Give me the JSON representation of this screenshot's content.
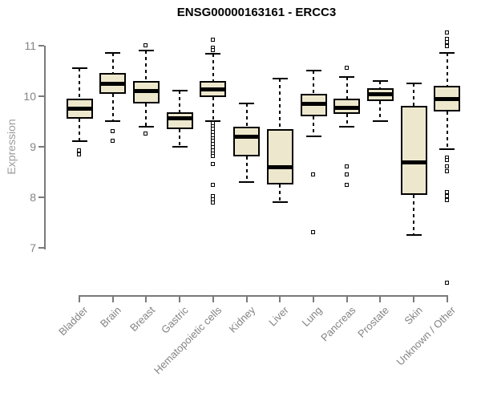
{
  "chart_data": {
    "type": "boxplot",
    "title": "ENSG00000163161 - ERCC3",
    "ylabel": "Expression",
    "xlabel": "",
    "yticks": [
      7,
      8,
      9,
      10,
      11
    ],
    "ylim": [
      7,
      11
    ],
    "grid": false,
    "legend": "none",
    "colors": {
      "box_fill": "#EDE8CD",
      "box_stroke": "#000000",
      "axis_line": "#7a7a7a",
      "tick_label": "#848484",
      "axis_title": "#9c9c9c",
      "title": "#000000"
    },
    "categories": [
      "Bladder",
      "Brain",
      "Breast",
      "Gastric",
      "Hematopoietic cells",
      "Kidney",
      "Liver",
      "Lung",
      "Pancreas",
      "Prostate",
      "Skin",
      "Unknown / Other"
    ],
    "boxes": [
      {
        "category": "Bladder",
        "whisker_low": 9.1,
        "q1": 9.55,
        "median": 9.75,
        "q3": 9.95,
        "whisker_high": 10.55,
        "outliers": [
          8.91,
          8.84
        ]
      },
      {
        "category": "Brain",
        "whisker_low": 9.5,
        "q1": 10.05,
        "median": 10.25,
        "q3": 10.45,
        "whisker_high": 10.85,
        "outliers": [
          9.3,
          9.1
        ]
      },
      {
        "category": "Breast",
        "whisker_low": 9.4,
        "q1": 9.85,
        "median": 10.1,
        "q3": 10.3,
        "whisker_high": 10.9,
        "outliers": [
          11.0,
          9.25
        ]
      },
      {
        "category": "Gastric",
        "whisker_low": 9.0,
        "q1": 9.35,
        "median": 9.57,
        "q3": 9.68,
        "whisker_high": 10.1,
        "outliers": []
      },
      {
        "category": "Hematopoietic cells",
        "whisker_low": 9.5,
        "q1": 9.98,
        "median": 10.13,
        "q3": 10.3,
        "whisker_high": 10.83,
        "outliers": [
          11.1,
          10.95,
          10.9,
          9.45,
          9.4,
          9.34,
          9.28,
          9.22,
          9.16,
          9.1,
          9.04,
          8.98,
          8.92,
          8.86,
          8.8,
          8.65,
          8.23,
          8.02,
          7.95,
          7.88
        ]
      },
      {
        "category": "Kidney",
        "whisker_low": 8.3,
        "q1": 8.8,
        "median": 9.2,
        "q3": 9.4,
        "whisker_high": 9.85,
        "outliers": []
      },
      {
        "category": "Liver",
        "whisker_low": 7.9,
        "q1": 8.25,
        "median": 8.6,
        "q3": 9.35,
        "whisker_high": 10.35,
        "outliers": []
      },
      {
        "category": "Lung",
        "whisker_low": 9.2,
        "q1": 9.6,
        "median": 9.85,
        "q3": 10.05,
        "whisker_high": 10.5,
        "outliers": [
          8.45,
          7.3
        ]
      },
      {
        "category": "Pancreas",
        "whisker_low": 9.4,
        "q1": 9.65,
        "median": 9.77,
        "q3": 9.95,
        "whisker_high": 10.37,
        "outliers": [
          10.55,
          8.6,
          8.45,
          8.24
        ]
      },
      {
        "category": "Prostate",
        "whisker_low": 9.5,
        "q1": 9.9,
        "median": 10.05,
        "q3": 10.15,
        "whisker_high": 10.3,
        "outliers": []
      },
      {
        "category": "Skin",
        "whisker_low": 7.25,
        "q1": 8.05,
        "median": 8.7,
        "q3": 9.8,
        "whisker_high": 10.25,
        "outliers": []
      },
      {
        "category": "Unknown / Other",
        "whisker_low": 8.95,
        "q1": 9.7,
        "median": 9.95,
        "q3": 10.2,
        "whisker_high": 10.85,
        "outliers": [
          11.25,
          11.12,
          11.06,
          10.98,
          8.78,
          8.72,
          8.6,
          8.5,
          8.1,
          8.02,
          7.93,
          6.3
        ]
      }
    ]
  }
}
